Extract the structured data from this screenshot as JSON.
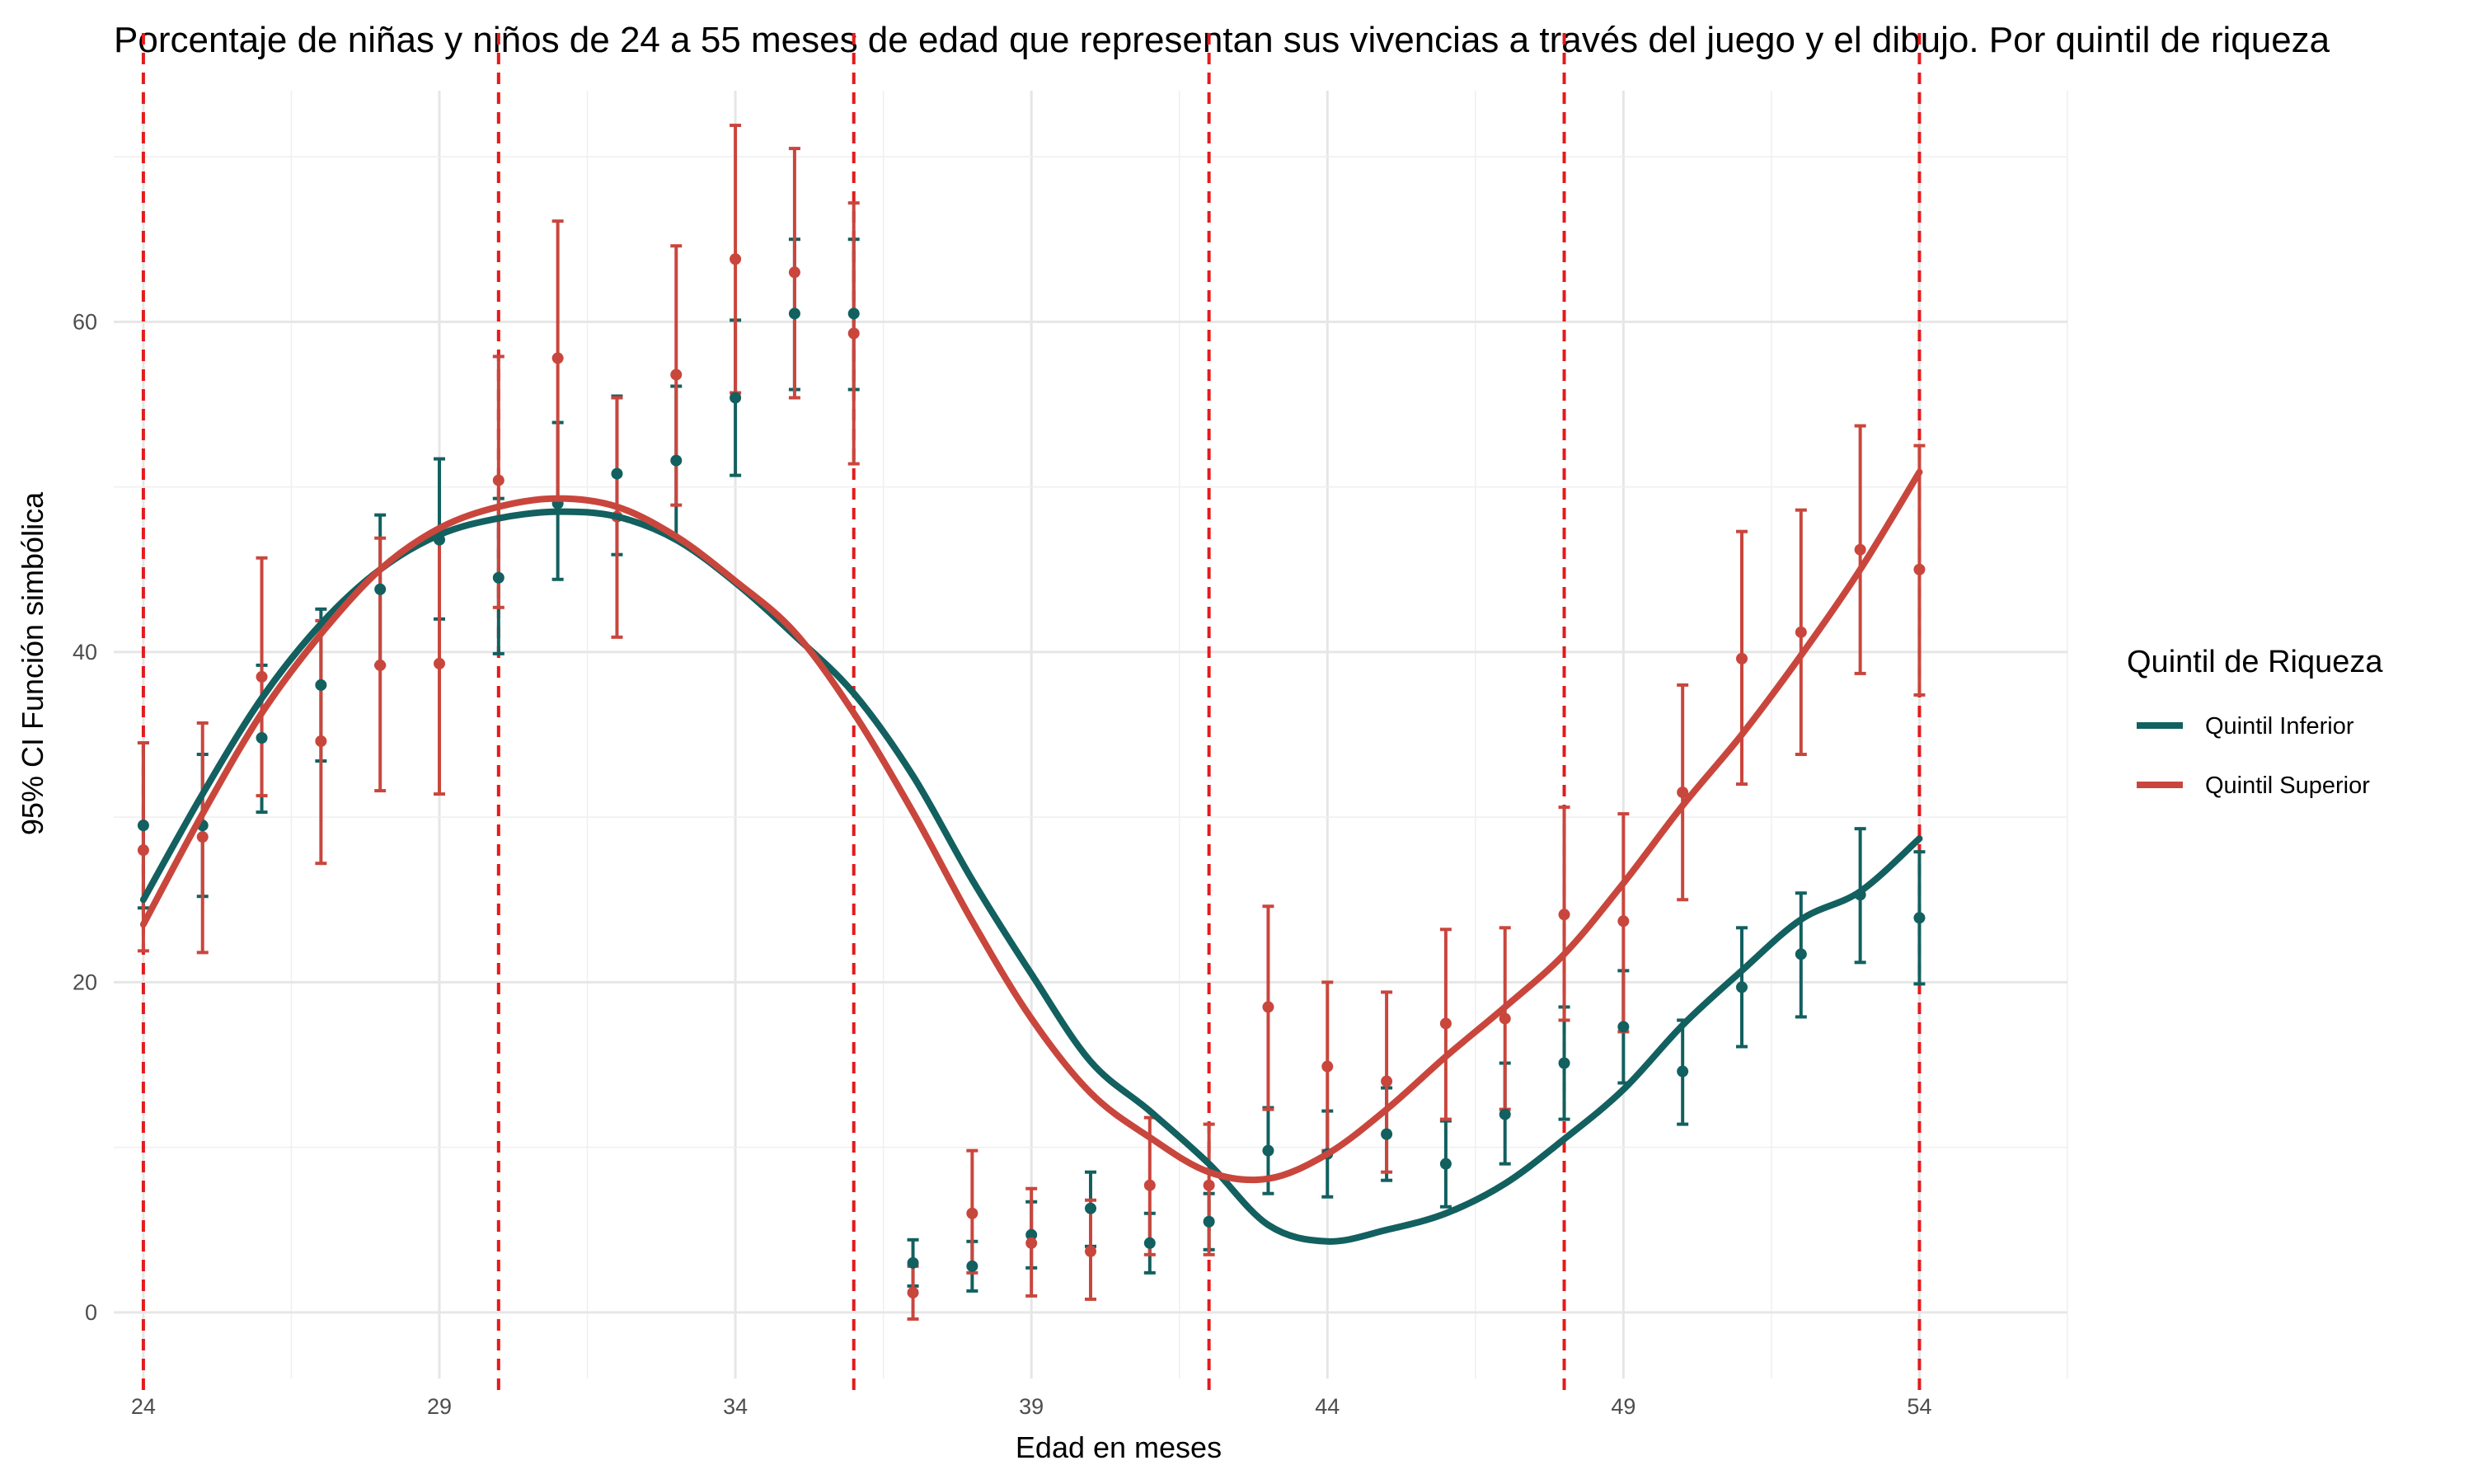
{
  "chart_data": {
    "type": "line",
    "title": "Porcentaje de niñas y niños de 24 a 55 meses de edad que representan sus vivencias a través del juego y el dibujo. Por quintil de riqueza",
    "xlabel": "Edad en meses",
    "ylabel": "95% CI Función simbólica",
    "xlim": [
      23.5,
      56.5
    ],
    "ylim": [
      -4,
      74
    ],
    "x_ticks": [
      24,
      29,
      34,
      39,
      44,
      49,
      54
    ],
    "y_ticks": [
      0,
      20,
      40,
      60
    ],
    "grid": true,
    "vlines": [
      24,
      30,
      36,
      42,
      48,
      54
    ],
    "vline_color": "#e41a1c",
    "legend": {
      "title": "Quintil de Riqueza",
      "position": "right"
    },
    "series": [
      {
        "name": "Quintil Inferior",
        "color": "#12605f",
        "x": [
          24,
          25,
          26,
          27,
          28,
          29,
          30,
          31,
          32,
          33,
          34,
          35,
          36,
          37,
          38,
          39,
          40,
          41,
          42,
          43,
          44,
          45,
          46,
          47,
          48,
          49,
          50,
          51,
          52,
          53,
          54
        ],
        "y": [
          29.5,
          29.5,
          34.8,
          38.0,
          43.8,
          46.8,
          44.5,
          49.0,
          50.8,
          51.6,
          55.4,
          60.5,
          60.5,
          3.0,
          2.8,
          4.7,
          6.3,
          4.2,
          5.5,
          9.8,
          9.6,
          10.8,
          9.0,
          12.0,
          15.1,
          17.3,
          14.6,
          19.7,
          21.7,
          25.3,
          23.9
        ],
        "lower": [
          24.5,
          25.2,
          30.3,
          33.4,
          39.2,
          42.0,
          39.9,
          44.4,
          45.9,
          46.9,
          50.7,
          55.9,
          55.9,
          1.6,
          1.3,
          2.7,
          4.0,
          2.4,
          3.8,
          7.2,
          7.0,
          8.0,
          6.4,
          9.0,
          11.7,
          13.9,
          11.4,
          16.1,
          17.9,
          21.2,
          19.9
        ],
        "upper": [
          34.5,
          33.8,
          39.2,
          42.6,
          48.3,
          51.7,
          49.3,
          53.9,
          55.5,
          56.1,
          60.1,
          65.0,
          65.0,
          4.4,
          4.3,
          6.7,
          8.5,
          6.0,
          7.2,
          12.4,
          12.2,
          13.6,
          11.6,
          15.1,
          18.5,
          20.7,
          17.7,
          23.3,
          25.4,
          29.3,
          27.9
        ],
        "smooth_y": [
          25.0,
          31.4,
          37.2,
          41.7,
          45.0,
          47.1,
          48.1,
          48.5,
          48.2,
          46.8,
          44.2,
          41.0,
          37.5,
          32.5,
          26.2,
          20.5,
          15.2,
          12.2,
          9.0,
          5.3,
          4.3,
          5.0,
          6.0,
          7.8,
          10.5,
          13.5,
          17.4,
          20.7,
          23.8,
          25.5,
          28.7
        ]
      },
      {
        "name": "Quintil Superior",
        "color": "#c9463d",
        "x": [
          24,
          25,
          26,
          27,
          28,
          29,
          30,
          31,
          32,
          33,
          34,
          35,
          36,
          37,
          38,
          39,
          40,
          41,
          42,
          43,
          44,
          45,
          46,
          47,
          48,
          49,
          50,
          51,
          52,
          53,
          54
        ],
        "y": [
          28.0,
          28.8,
          38.5,
          34.6,
          39.2,
          39.3,
          50.4,
          57.8,
          48.2,
          56.8,
          63.8,
          63.0,
          59.3,
          1.2,
          6.0,
          4.2,
          3.7,
          7.7,
          7.7,
          18.5,
          14.9,
          14.0,
          17.5,
          17.8,
          24.1,
          23.7,
          31.5,
          39.6,
          41.2,
          46.2,
          45.0
        ],
        "lower": [
          21.9,
          21.8,
          31.3,
          27.2,
          31.6,
          31.4,
          42.7,
          49.2,
          40.9,
          48.9,
          55.7,
          55.4,
          51.4,
          -0.4,
          2.4,
          1.0,
          0.8,
          3.5,
          3.5,
          12.3,
          9.8,
          8.5,
          11.7,
          12.3,
          17.7,
          17.0,
          25.0,
          32.0,
          33.8,
          38.7,
          37.4
        ],
        "upper": [
          34.5,
          35.7,
          45.7,
          41.9,
          46.9,
          47.2,
          57.9,
          66.1,
          55.4,
          64.6,
          71.9,
          70.5,
          67.2,
          2.8,
          9.8,
          7.5,
          6.8,
          11.8,
          11.4,
          24.6,
          20.0,
          19.4,
          23.2,
          23.3,
          30.6,
          30.2,
          38.0,
          47.3,
          48.6,
          53.7,
          52.5
        ],
        "smooth_y": [
          23.5,
          30.2,
          36.3,
          41.1,
          45.0,
          47.5,
          48.8,
          49.3,
          48.8,
          47.0,
          44.3,
          41.2,
          36.3,
          30.3,
          23.7,
          17.8,
          13.3,
          10.6,
          8.5,
          8.1,
          9.6,
          12.3,
          15.5,
          18.5,
          21.7,
          26.0,
          30.7,
          35.0,
          39.8,
          45.0,
          50.9
        ]
      }
    ]
  }
}
